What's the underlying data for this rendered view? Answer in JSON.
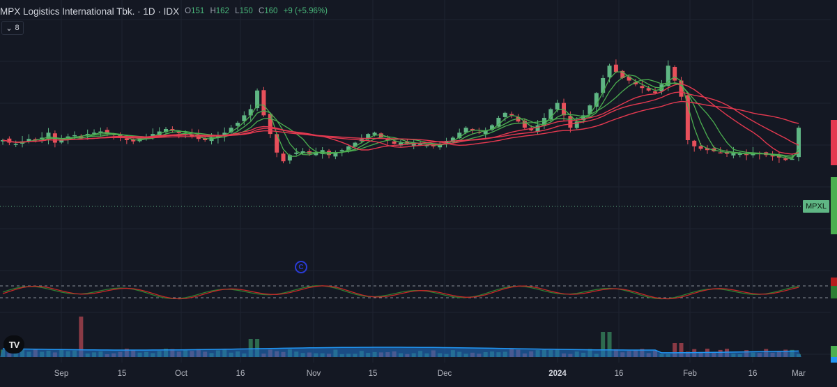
{
  "header": {
    "title": "MPX Logistics International Tbk. · 1D · IDX",
    "open_label": "O",
    "open": "151",
    "high_label": "H",
    "high": "162",
    "low_label": "L",
    "low": "150",
    "close_label": "C",
    "close": "160",
    "change": "+9 (+5.96%)"
  },
  "indicators_toggle": {
    "icon": "chevron-down-icon",
    "count": "8"
  },
  "symbol_label": "MPXL",
  "event_marker_icon": "circle-c-icon",
  "logo": "TV",
  "x_axis": [
    "Sep",
    "15",
    "Oct",
    "16",
    "Nov",
    "15",
    "Dec",
    "2024",
    "16",
    "Feb",
    "16",
    "Mar"
  ],
  "colors": {
    "up": "#5fb684",
    "down": "#e8505b",
    "ma_up": "#4caf50",
    "ma_down": "#e53950",
    "volume_ma": "#2196f3",
    "background": "#141823"
  },
  "chart_data": {
    "type": "candlestick",
    "series_closes": [
      150,
      148,
      147,
      149,
      151,
      150,
      152,
      156,
      148,
      150,
      153,
      154,
      153,
      155,
      156,
      157,
      155,
      154,
      152,
      150,
      149,
      151,
      153,
      155,
      157,
      159,
      158,
      156,
      155,
      153,
      151,
      150,
      152,
      154,
      156,
      160,
      164,
      170,
      175,
      190,
      170,
      155,
      140,
      133,
      138,
      140,
      141,
      139,
      140,
      142,
      138,
      140,
      142,
      145,
      148,
      151,
      155,
      156,
      152,
      150,
      147,
      148,
      147,
      148,
      147,
      146,
      145,
      147,
      149,
      152,
      156,
      160,
      158,
      156,
      158,
      162,
      168,
      172,
      170,
      165,
      160,
      158,
      162,
      168,
      175,
      180,
      170,
      160,
      165,
      170,
      178,
      188,
      200,
      210,
      205,
      200,
      198,
      195,
      192,
      190,
      188,
      195,
      210,
      198,
      185,
      150,
      145,
      143,
      142,
      141,
      140,
      139,
      140,
      139,
      138,
      140,
      139,
      138,
      137,
      136,
      134,
      135,
      160
    ],
    "volume_ma_visible": true,
    "stochastic_levels": [
      80,
      20
    ]
  }
}
